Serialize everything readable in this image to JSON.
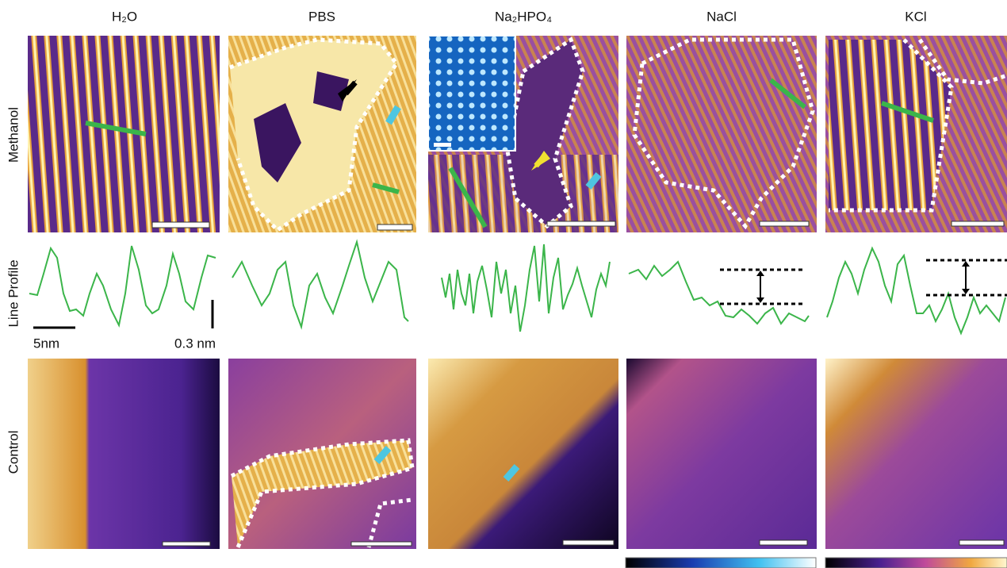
{
  "columns": [
    "H₂O",
    "PBS",
    "Na₂HPO₄",
    "NaCl",
    "KCl"
  ],
  "rows": [
    "Methanol",
    "Line Profile",
    "Control"
  ],
  "scale_labels": [
    "5nm",
    "0.3 nm"
  ]
}
